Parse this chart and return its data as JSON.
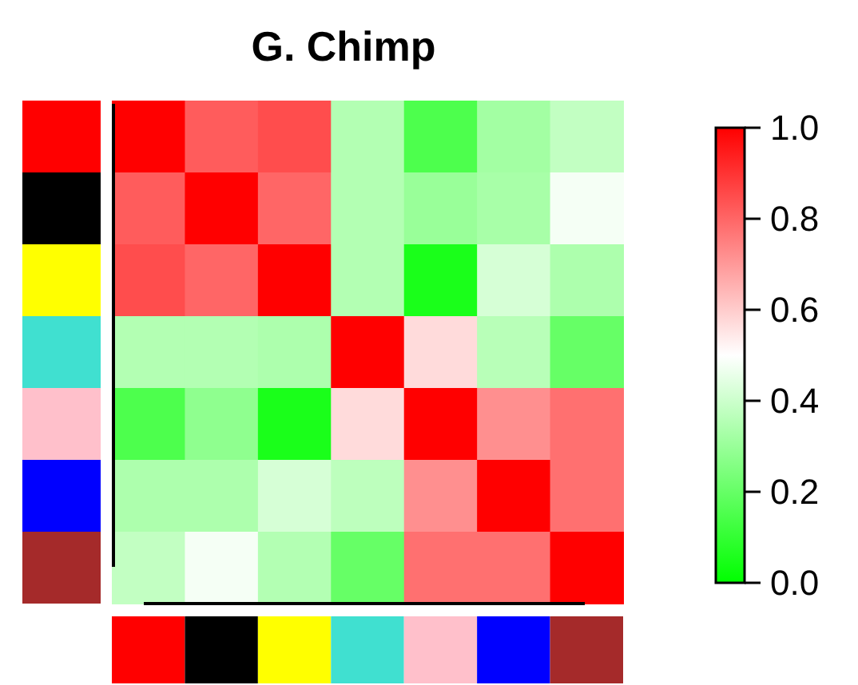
{
  "chart_data": {
    "type": "heatmap",
    "title": "G.   Chimp",
    "categories": [
      null,
      null,
      null,
      null,
      null,
      null,
      null
    ],
    "y_categories": [
      null,
      null,
      null,
      null,
      null,
      null,
      null
    ],
    "cells": [
      [
        1,
        0.82,
        0.85,
        0.35,
        0.15,
        0.32,
        0.38
      ],
      [
        0.82,
        1,
        0.8,
        0.35,
        0.3,
        0.33,
        0.48
      ],
      [
        0.85,
        0.8,
        1,
        0.35,
        0.05,
        0.42,
        0.34
      ],
      [
        0.35,
        0.35,
        0.34,
        1,
        0.57,
        0.36,
        0.2
      ],
      [
        0.15,
        0.28,
        0.05,
        0.57,
        1,
        0.72,
        0.78
      ],
      [
        0.34,
        0.34,
        0.42,
        0.37,
        0.72,
        1,
        0.78
      ],
      [
        0.38,
        0.48,
        0.35,
        0.2,
        0.78,
        0.78,
        1
      ]
    ],
    "clim": [
      0,
      1
    ],
    "cticks": [
      {
        "value": 0,
        "label": "0.0"
      },
      {
        "value": 0.2,
        "label": "0.2"
      },
      {
        "value": 0.4,
        "label": "0.4"
      },
      {
        "value": 0.6,
        "label": "0.6"
      },
      {
        "value": 0.8,
        "label": "0.8"
      },
      {
        "value": 1,
        "label": "1.0"
      }
    ]
  }
}
